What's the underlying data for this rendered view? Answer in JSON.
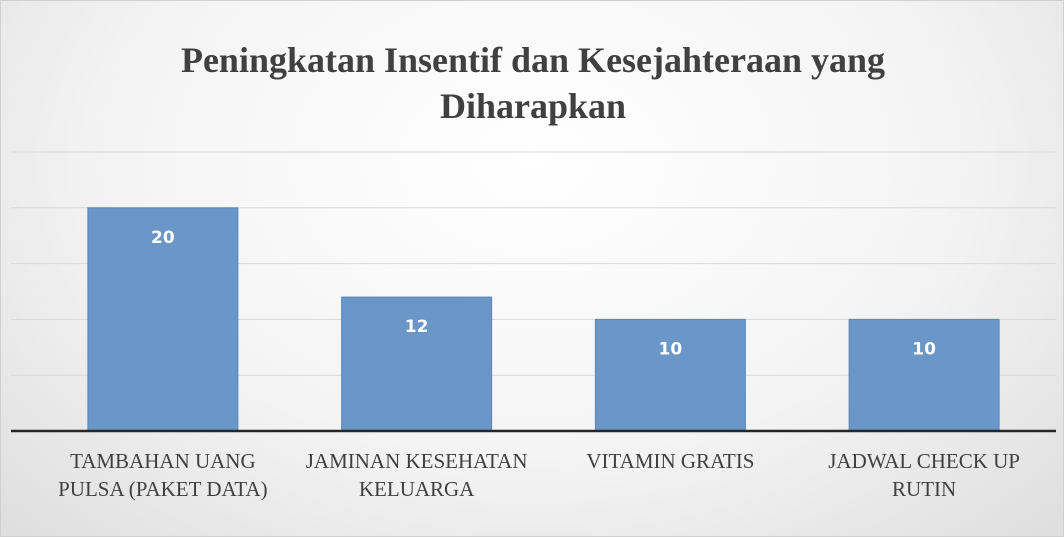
{
  "chart_data": {
    "type": "bar",
    "title": "Peningkatan Insentif dan Kesejahteraan yang Diharapkan",
    "categories": [
      "TAMBAHAN UANG PULSA (PAKET DATA)",
      "JAMINAN KESEHATAN KELUARGA",
      "VITAMIN GRATIS",
      "JADWAL CHECK UP RUTIN"
    ],
    "values": [
      20,
      12,
      10,
      10
    ],
    "color": "#6a96c8",
    "ylim": [
      0,
      25
    ],
    "yticks": [
      0,
      5,
      10,
      15,
      20,
      25
    ],
    "grid": true
  }
}
